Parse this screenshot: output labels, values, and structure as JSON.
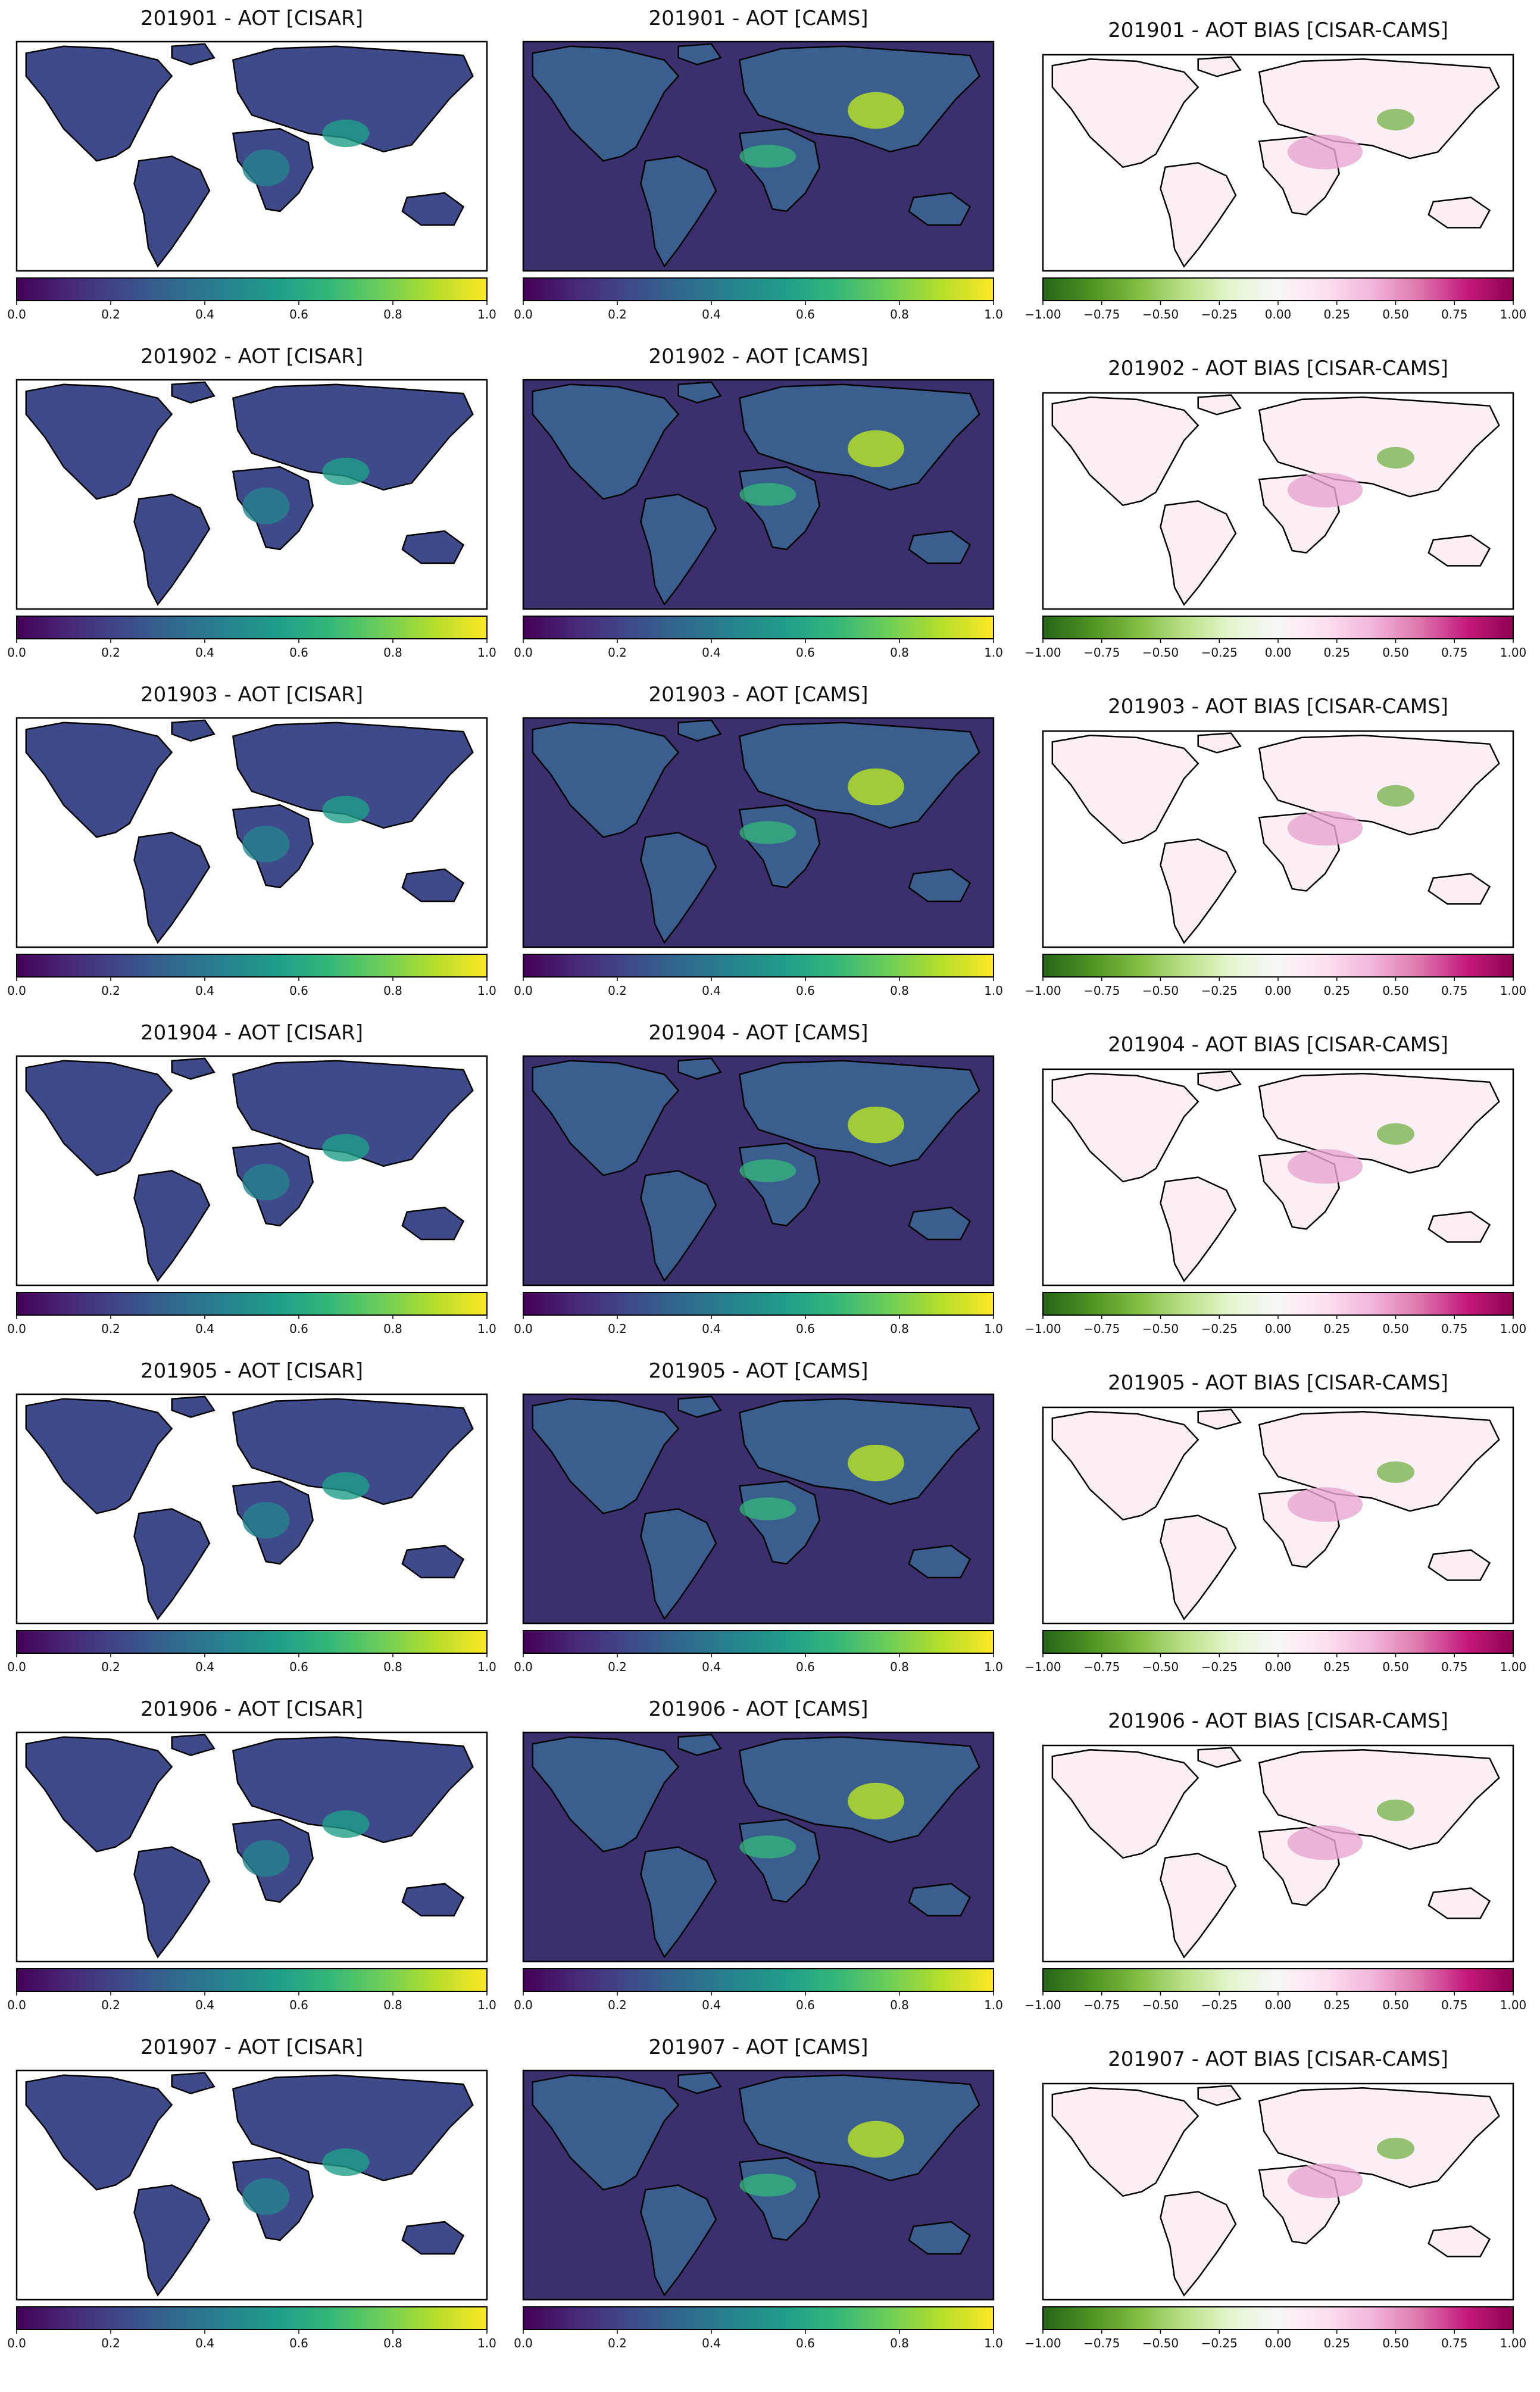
{
  "figure": {
    "colors": {
      "viridis": [
        "#440154",
        "#482878",
        "#3e4989",
        "#31688e",
        "#26828e",
        "#1f9e89",
        "#35b779",
        "#6ece58",
        "#b5de2b",
        "#fde725"
      ],
      "piyg_r": [
        "#276419",
        "#4d9221",
        "#7fbc41",
        "#b8e186",
        "#e6f5d0",
        "#f7f7f7",
        "#fde0ef",
        "#f1b6da",
        "#de77ae",
        "#c51b7d",
        "#8e0152"
      ],
      "map_background_cams": "#3b2f6e",
      "bias_green": "#6aae3a",
      "bias_pink": "#e9a6cf"
    }
  },
  "chart_data": [
    {
      "type": "heatmap",
      "title": "201901 - AOT [CISAR]",
      "colorbar": "viridis",
      "vmin": 0.0,
      "vmax": 1.0,
      "ticks": [
        "0.0",
        "0.2",
        "0.4",
        "0.6",
        "0.8",
        "1.0"
      ]
    },
    {
      "type": "heatmap",
      "title": "201901 - AOT [CAMS]",
      "colorbar": "viridis",
      "vmin": 0.0,
      "vmax": 1.0,
      "ticks": [
        "0.0",
        "0.2",
        "0.4",
        "0.6",
        "0.8",
        "1.0"
      ]
    },
    {
      "type": "heatmap",
      "title": "201901 - AOT BIAS [CISAR-CAMS]",
      "colorbar": "PiYG_r",
      "vmin": -1.0,
      "vmax": 1.0,
      "ticks": [
        "−1.00",
        "−0.75",
        "−0.50",
        "−0.25",
        "0.00",
        "0.25",
        "0.50",
        "0.75",
        "1.00"
      ]
    },
    {
      "type": "heatmap",
      "title": "201902 - AOT [CISAR]",
      "colorbar": "viridis",
      "vmin": 0.0,
      "vmax": 1.0,
      "ticks": [
        "0.0",
        "0.2",
        "0.4",
        "0.6",
        "0.8",
        "1.0"
      ]
    },
    {
      "type": "heatmap",
      "title": "201902 - AOT [CAMS]",
      "colorbar": "viridis",
      "vmin": 0.0,
      "vmax": 1.0,
      "ticks": [
        "0.0",
        "0.2",
        "0.4",
        "0.6",
        "0.8",
        "1.0"
      ]
    },
    {
      "type": "heatmap",
      "title": "201902 - AOT BIAS [CISAR-CAMS]",
      "colorbar": "PiYG_r",
      "vmin": -1.0,
      "vmax": 1.0,
      "ticks": [
        "−1.00",
        "−0.75",
        "−0.50",
        "−0.25",
        "0.00",
        "0.25",
        "0.50",
        "0.75",
        "1.00"
      ]
    },
    {
      "type": "heatmap",
      "title": "201903 - AOT [CISAR]",
      "colorbar": "viridis",
      "vmin": 0.0,
      "vmax": 1.0,
      "ticks": [
        "0.0",
        "0.2",
        "0.4",
        "0.6",
        "0.8",
        "1.0"
      ]
    },
    {
      "type": "heatmap",
      "title": "201903 - AOT [CAMS]",
      "colorbar": "viridis",
      "vmin": 0.0,
      "vmax": 1.0,
      "ticks": [
        "0.0",
        "0.2",
        "0.4",
        "0.6",
        "0.8",
        "1.0"
      ]
    },
    {
      "type": "heatmap",
      "title": "201903 - AOT BIAS [CISAR-CAMS]",
      "colorbar": "PiYG_r",
      "vmin": -1.0,
      "vmax": 1.0,
      "ticks": [
        "−1.00",
        "−0.75",
        "−0.50",
        "−0.25",
        "0.00",
        "0.25",
        "0.50",
        "0.75",
        "1.00"
      ]
    },
    {
      "type": "heatmap",
      "title": "201904 - AOT [CISAR]",
      "colorbar": "viridis",
      "vmin": 0.0,
      "vmax": 1.0,
      "ticks": [
        "0.0",
        "0.2",
        "0.4",
        "0.6",
        "0.8",
        "1.0"
      ]
    },
    {
      "type": "heatmap",
      "title": "201904 - AOT [CAMS]",
      "colorbar": "viridis",
      "vmin": 0.0,
      "vmax": 1.0,
      "ticks": [
        "0.0",
        "0.2",
        "0.4",
        "0.6",
        "0.8",
        "1.0"
      ]
    },
    {
      "type": "heatmap",
      "title": "201904 - AOT BIAS [CISAR-CAMS]",
      "colorbar": "PiYG_r",
      "vmin": -1.0,
      "vmax": 1.0,
      "ticks": [
        "−1.00",
        "−0.75",
        "−0.50",
        "−0.25",
        "0.00",
        "0.25",
        "0.50",
        "0.75",
        "1.00"
      ]
    },
    {
      "type": "heatmap",
      "title": "201905 - AOT [CISAR]",
      "colorbar": "viridis",
      "vmin": 0.0,
      "vmax": 1.0,
      "ticks": [
        "0.0",
        "0.2",
        "0.4",
        "0.6",
        "0.8",
        "1.0"
      ]
    },
    {
      "type": "heatmap",
      "title": "201905 - AOT [CAMS]",
      "colorbar": "viridis",
      "vmin": 0.0,
      "vmax": 1.0,
      "ticks": [
        "0.0",
        "0.2",
        "0.4",
        "0.6",
        "0.8",
        "1.0"
      ]
    },
    {
      "type": "heatmap",
      "title": "201905 - AOT BIAS [CISAR-CAMS]",
      "colorbar": "PiYG_r",
      "vmin": -1.0,
      "vmax": 1.0,
      "ticks": [
        "−1.00",
        "−0.75",
        "−0.50",
        "−0.25",
        "0.00",
        "0.25",
        "0.50",
        "0.75",
        "1.00"
      ]
    },
    {
      "type": "heatmap",
      "title": "201906 - AOT [CISAR]",
      "colorbar": "viridis",
      "vmin": 0.0,
      "vmax": 1.0,
      "ticks": [
        "0.0",
        "0.2",
        "0.4",
        "0.6",
        "0.8",
        "1.0"
      ]
    },
    {
      "type": "heatmap",
      "title": "201906 - AOT [CAMS]",
      "colorbar": "viridis",
      "vmin": 0.0,
      "vmax": 1.0,
      "ticks": [
        "0.0",
        "0.2",
        "0.4",
        "0.6",
        "0.8",
        "1.0"
      ]
    },
    {
      "type": "heatmap",
      "title": "201906 - AOT BIAS [CISAR-CAMS]",
      "colorbar": "PiYG_r",
      "vmin": -1.0,
      "vmax": 1.0,
      "ticks": [
        "−1.00",
        "−0.75",
        "−0.50",
        "−0.25",
        "0.00",
        "0.25",
        "0.50",
        "0.75",
        "1.00"
      ]
    },
    {
      "type": "heatmap",
      "title": "201907 - AOT [CISAR]",
      "colorbar": "viridis",
      "vmin": 0.0,
      "vmax": 1.0,
      "ticks": [
        "0.0",
        "0.2",
        "0.4",
        "0.6",
        "0.8",
        "1.0"
      ]
    },
    {
      "type": "heatmap",
      "title": "201907 - AOT [CAMS]",
      "colorbar": "viridis",
      "vmin": 0.0,
      "vmax": 1.0,
      "ticks": [
        "0.0",
        "0.2",
        "0.4",
        "0.6",
        "0.8",
        "1.0"
      ]
    },
    {
      "type": "heatmap",
      "title": "201907 - AOT BIAS [CISAR-CAMS]",
      "colorbar": "PiYG_r",
      "vmin": -1.0,
      "vmax": 1.0,
      "ticks": [
        "−1.00",
        "−0.75",
        "−0.50",
        "−0.25",
        "0.00",
        "0.25",
        "0.50",
        "0.75",
        "1.00"
      ]
    }
  ]
}
